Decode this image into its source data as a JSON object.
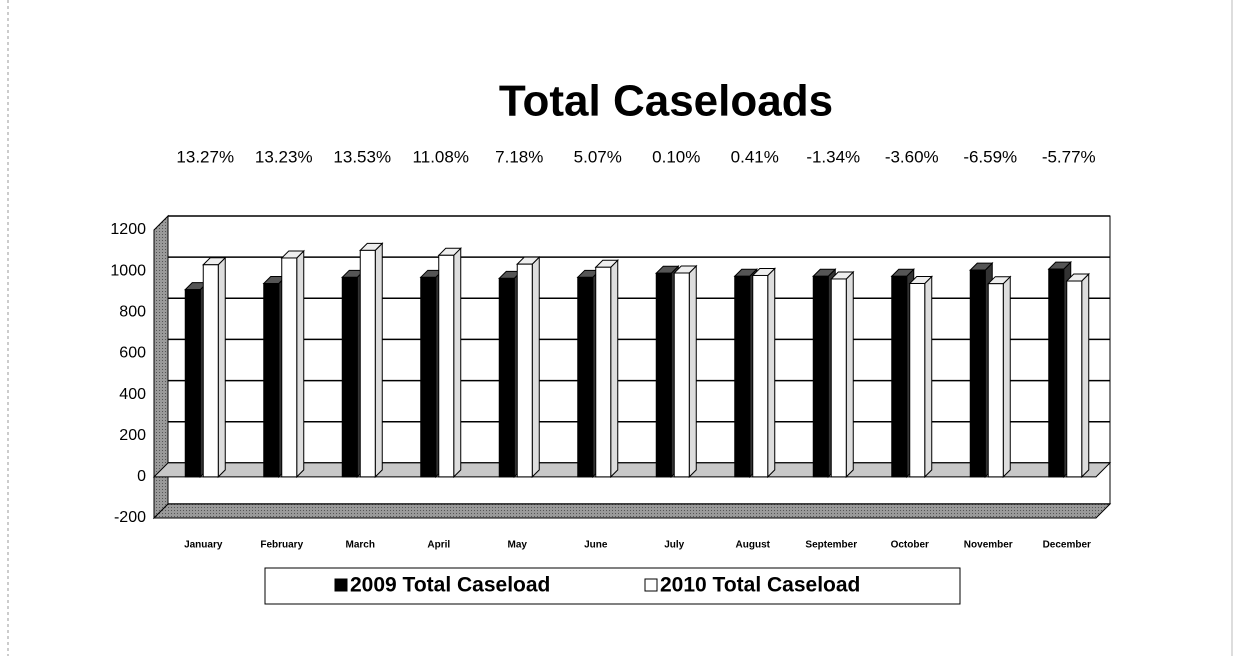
{
  "chart_data": {
    "type": "bar",
    "title": "Total Caseloads",
    "annotations": [
      "13.27%",
      "13.23%",
      "13.53%",
      "11.08%",
      "7.18%",
      "5.07%",
      "0.10%",
      "0.41%",
      "-1.34%",
      "-3.60%",
      "-6.59%",
      "-5.77%"
    ],
    "categories": [
      "January",
      "February",
      "March",
      "April",
      "May",
      "June",
      "July",
      "August",
      "September",
      "October",
      "November",
      "December"
    ],
    "series": [
      {
        "name": "2009 Total Caseload",
        "color": "#000000",
        "values": [
          910,
          940,
          970,
          970,
          965,
          970,
          990,
          975,
          975,
          975,
          1005,
          1010
        ]
      },
      {
        "name": "2010 Total Caseload",
        "color": "#ffffff",
        "values": [
          1031,
          1064,
          1101,
          1077,
          1034,
          1019,
          991,
          979,
          962,
          940,
          939,
          952
        ]
      }
    ],
    "ylim": [
      -200,
      1200
    ],
    "yticks": [
      -200,
      0,
      200,
      400,
      600,
      800,
      1000,
      1200
    ],
    "grid": true,
    "legend": "bottom"
  }
}
